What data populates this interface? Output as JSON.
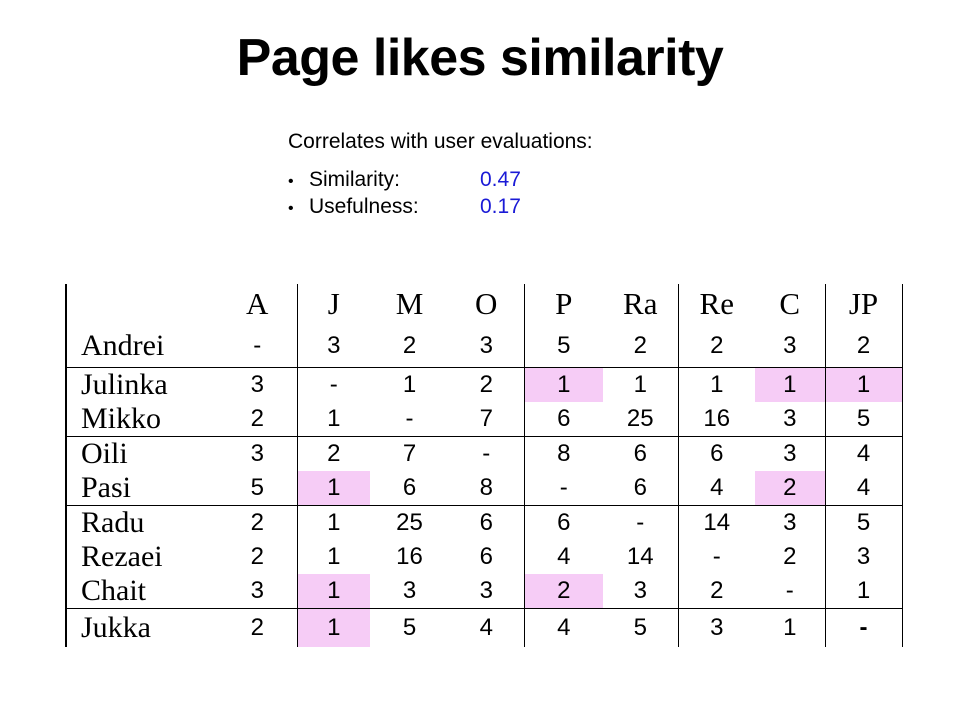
{
  "title": "Page likes similarity",
  "notes": {
    "heading": "Correlates with user evaluations:",
    "items": [
      {
        "label": "Similarity:",
        "value": "0.47"
      },
      {
        "label": "Usefulness:",
        "value": "0.17"
      }
    ]
  },
  "table": {
    "columns": [
      "A",
      "J",
      "M",
      "O",
      "P",
      "Ra",
      "Re",
      "C",
      "JP"
    ],
    "rows": [
      {
        "name": "Andrei",
        "values": [
          "-",
          "3",
          "2",
          "3",
          "5",
          "2",
          "2",
          "3",
          "2"
        ]
      },
      {
        "name": "Julinka",
        "values": [
          "3",
          "-",
          "1",
          "2",
          "1",
          "1",
          "1",
          "1",
          "1"
        ]
      },
      {
        "name": "Mikko",
        "values": [
          "2",
          "1",
          "-",
          "7",
          "6",
          "25",
          "16",
          "3",
          "5"
        ]
      },
      {
        "name": "Oili",
        "values": [
          "3",
          "2",
          "7",
          "-",
          "8",
          "6",
          "6",
          "3",
          "4"
        ]
      },
      {
        "name": "Pasi",
        "values": [
          "5",
          "1",
          "6",
          "8",
          "-",
          "6",
          "4",
          "2",
          "4"
        ]
      },
      {
        "name": "Radu",
        "values": [
          "2",
          "1",
          "25",
          "6",
          "6",
          "-",
          "14",
          "3",
          "5"
        ]
      },
      {
        "name": "Rezaei",
        "values": [
          "2",
          "1",
          "16",
          "6",
          "4",
          "14",
          "-",
          "2",
          "3"
        ]
      },
      {
        "name": "Chait",
        "values": [
          "3",
          "1",
          "3",
          "3",
          "2",
          "3",
          "2",
          "-",
          "1"
        ]
      },
      {
        "name": "Jukka",
        "values": [
          "2",
          "1",
          "5",
          "4",
          "4",
          "5",
          "3",
          "1",
          "-"
        ]
      }
    ],
    "highlight_color": "#f6ccf6"
  }
}
